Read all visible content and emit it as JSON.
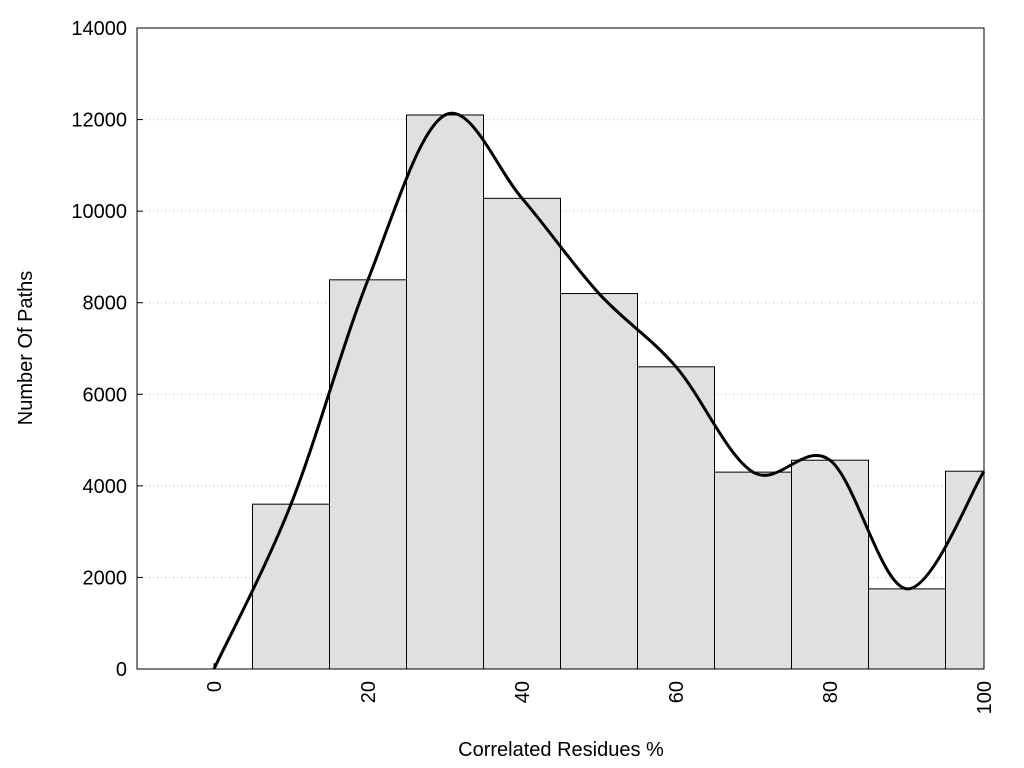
{
  "chart_data": {
    "type": "histogram",
    "xlabel": "Correlated Residues %",
    "ylabel": "Number Of Paths",
    "bins": [
      5,
      15,
      25,
      35,
      45,
      55,
      65,
      75,
      85,
      95,
      100
    ],
    "values": [
      3600,
      8500,
      12100,
      10280,
      8200,
      6600,
      4300,
      4560,
      1750,
      4320
    ],
    "color": "#e0e0e0",
    "curve": {
      "x": [
        0,
        10,
        20,
        30,
        40,
        50,
        60,
        70,
        80,
        90,
        100
      ],
      "values": [
        0,
        3600,
        8500,
        12100,
        10280,
        8200,
        6600,
        4300,
        4560,
        1750,
        4320
      ],
      "color": "#000000"
    },
    "xlim": [
      -10,
      100
    ],
    "xticks": [
      0,
      20,
      40,
      60,
      80,
      100
    ],
    "ylim": [
      0,
      14000
    ],
    "yticks": [
      0,
      2000,
      4000,
      6000,
      8000,
      10000,
      12000,
      14000
    ],
    "grid": true
  }
}
